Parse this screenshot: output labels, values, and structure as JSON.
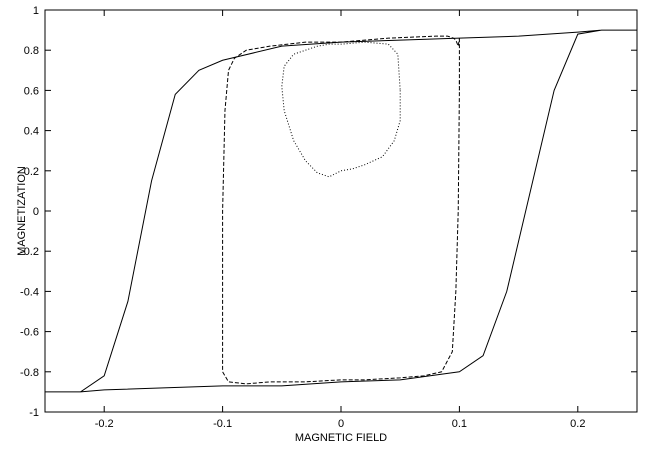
{
  "chart_data": {
    "type": "line",
    "title": "",
    "xlabel": "MAGNETIC FIELD",
    "ylabel": "MAGNETIZATION",
    "xlim": [
      -0.25,
      0.25
    ],
    "ylim": [
      -1,
      1
    ],
    "xticks": [
      -0.2,
      -0.1,
      0,
      0.1,
      0.2
    ],
    "xtick_labels": [
      "-0.2",
      "-0.1",
      "0",
      "0.1",
      "0.2"
    ],
    "yticks": [
      -1,
      -0.8,
      -0.6,
      -0.4,
      -0.2,
      0,
      0.2,
      0.4,
      0.6,
      0.8,
      1
    ],
    "ytick_labels": [
      "-1",
      "-0.8",
      "-0.6",
      "-0.4",
      "-0.2",
      "0",
      "0.2",
      "0.4",
      "0.6",
      "0.8",
      "1"
    ],
    "grid": false,
    "legend": "none",
    "series": [
      {
        "style": "solid",
        "x": [
          -0.25,
          -0.22,
          -0.2,
          -0.18,
          -0.16,
          -0.14,
          -0.12,
          -0.1,
          -0.05,
          0,
          0.05,
          0.1,
          0.15,
          0.2,
          0.22,
          0.25,
          0.22,
          0.2,
          0.18,
          0.16,
          0.14,
          0.12,
          0.1,
          0.05,
          0,
          -0.05,
          -0.1,
          -0.15,
          -0.2,
          -0.22,
          -0.25
        ],
        "y": [
          -0.9,
          -0.9,
          -0.82,
          -0.45,
          0.15,
          0.58,
          0.7,
          0.75,
          0.82,
          0.84,
          0.85,
          0.86,
          0.87,
          0.89,
          0.9,
          0.9,
          0.9,
          0.88,
          0.6,
          0.1,
          -0.4,
          -0.72,
          -0.8,
          -0.84,
          -0.85,
          -0.87,
          -0.87,
          -0.88,
          -0.89,
          -0.9,
          -0.9
        ]
      },
      {
        "style": "dashed",
        "x": [
          0.1,
          0.1,
          0.099,
          0.097,
          0.094,
          0.085,
          0.07,
          0.05,
          0.02,
          0,
          -0.03,
          -0.06,
          -0.08,
          -0.095,
          -0.1,
          -0.1,
          -0.098,
          -0.095,
          -0.09,
          -0.08,
          -0.06,
          -0.03,
          0,
          0.02,
          0.04,
          0.06,
          0.08,
          0.09,
          0.095,
          0.097,
          0.099,
          0.1
        ],
        "y": [
          0.86,
          0.6,
          0.0,
          -0.4,
          -0.7,
          -0.8,
          -0.82,
          -0.83,
          -0.84,
          -0.84,
          -0.85,
          -0.85,
          -0.86,
          -0.85,
          -0.8,
          0.0,
          0.5,
          0.7,
          0.76,
          0.8,
          0.82,
          0.84,
          0.84,
          0.85,
          0.86,
          0.865,
          0.87,
          0.87,
          0.86,
          0.85,
          0.82,
          0.86
        ]
      },
      {
        "style": "dotted",
        "x": [
          0.05,
          0.05,
          0.045,
          0.035,
          0.02,
          0.01,
          0.0,
          -0.01,
          -0.02,
          -0.03,
          -0.04,
          -0.048,
          -0.05,
          -0.048,
          -0.04,
          -0.03,
          -0.02,
          -0.01,
          0.0,
          0.02,
          0.04,
          0.048,
          0.05
        ],
        "y": [
          0.6,
          0.45,
          0.35,
          0.27,
          0.23,
          0.21,
          0.2,
          0.17,
          0.19,
          0.25,
          0.35,
          0.5,
          0.62,
          0.72,
          0.78,
          0.8,
          0.82,
          0.83,
          0.83,
          0.84,
          0.83,
          0.78,
          0.6
        ]
      },
      {
        "style": "dashdot",
        "x": [
          0.1,
          0.1
        ],
        "y": [
          0.65,
          0.6
        ]
      }
    ]
  }
}
